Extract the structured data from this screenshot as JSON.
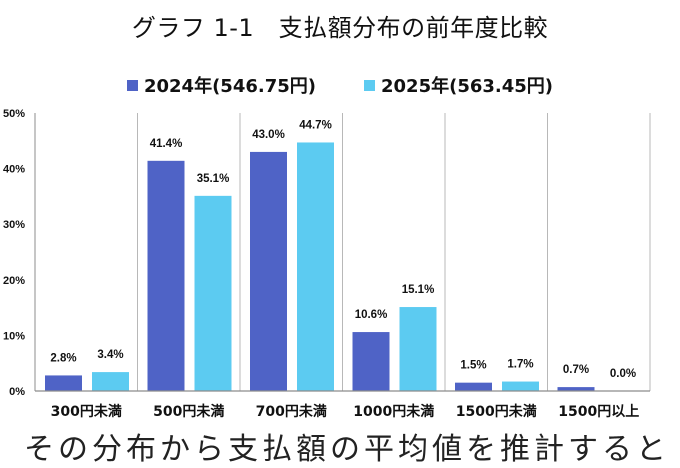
{
  "chart_data": {
    "type": "bar",
    "title": "グラフ 1-1　支払額分布の前年度比較",
    "xlabel": "",
    "ylabel": "",
    "ylim": [
      0,
      50
    ],
    "yticks": [
      "0%",
      "10%",
      "20%",
      "30%",
      "40%",
      "50%"
    ],
    "ytick_values": [
      0,
      10,
      20,
      30,
      40,
      50
    ],
    "grid": "vertical category separators",
    "legend_position": "top-center",
    "categories": [
      "300円未満",
      "500円未満",
      "700円未満",
      "1000円未満",
      "1500円未満",
      "1500円以上"
    ],
    "series": [
      {
        "name": "2024年(546.75円)",
        "color": "#4f63c6",
        "values": [
          2.8,
          41.4,
          43.0,
          10.6,
          1.5,
          0.7
        ],
        "labels": [
          "2.8%",
          "41.4%",
          "43.0%",
          "10.6%",
          "1.5%",
          "0.7%"
        ]
      },
      {
        "name": "2025年(563.45円)",
        "color": "#5ccbf1",
        "values": [
          3.4,
          35.1,
          44.7,
          15.1,
          1.7,
          0.0
        ],
        "labels": [
          "3.4%",
          "35.1%",
          "44.7%",
          "15.1%",
          "1.7%",
          "0.0%"
        ]
      }
    ]
  },
  "body_text": "その分布から支払額の平均値を推計すると"
}
